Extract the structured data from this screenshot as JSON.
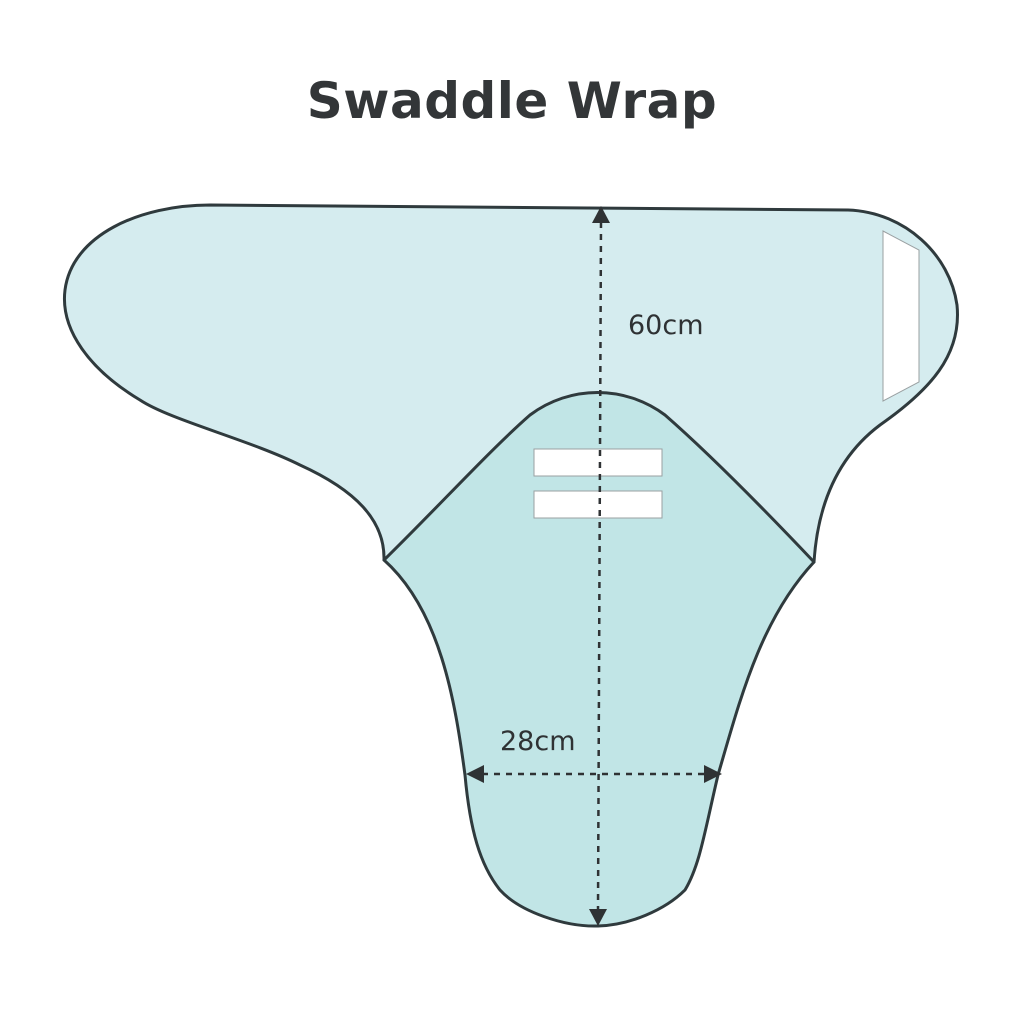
{
  "title": "Swaddle Wrap",
  "dimensions": {
    "length_label": "60cm",
    "width_label": "28cm"
  },
  "colors": {
    "outer_panel": "#d5ecef",
    "inner_panel": "#c1e5e6",
    "outline": "#2f3a3d",
    "tab": "#ffffff",
    "text": "#333638"
  }
}
